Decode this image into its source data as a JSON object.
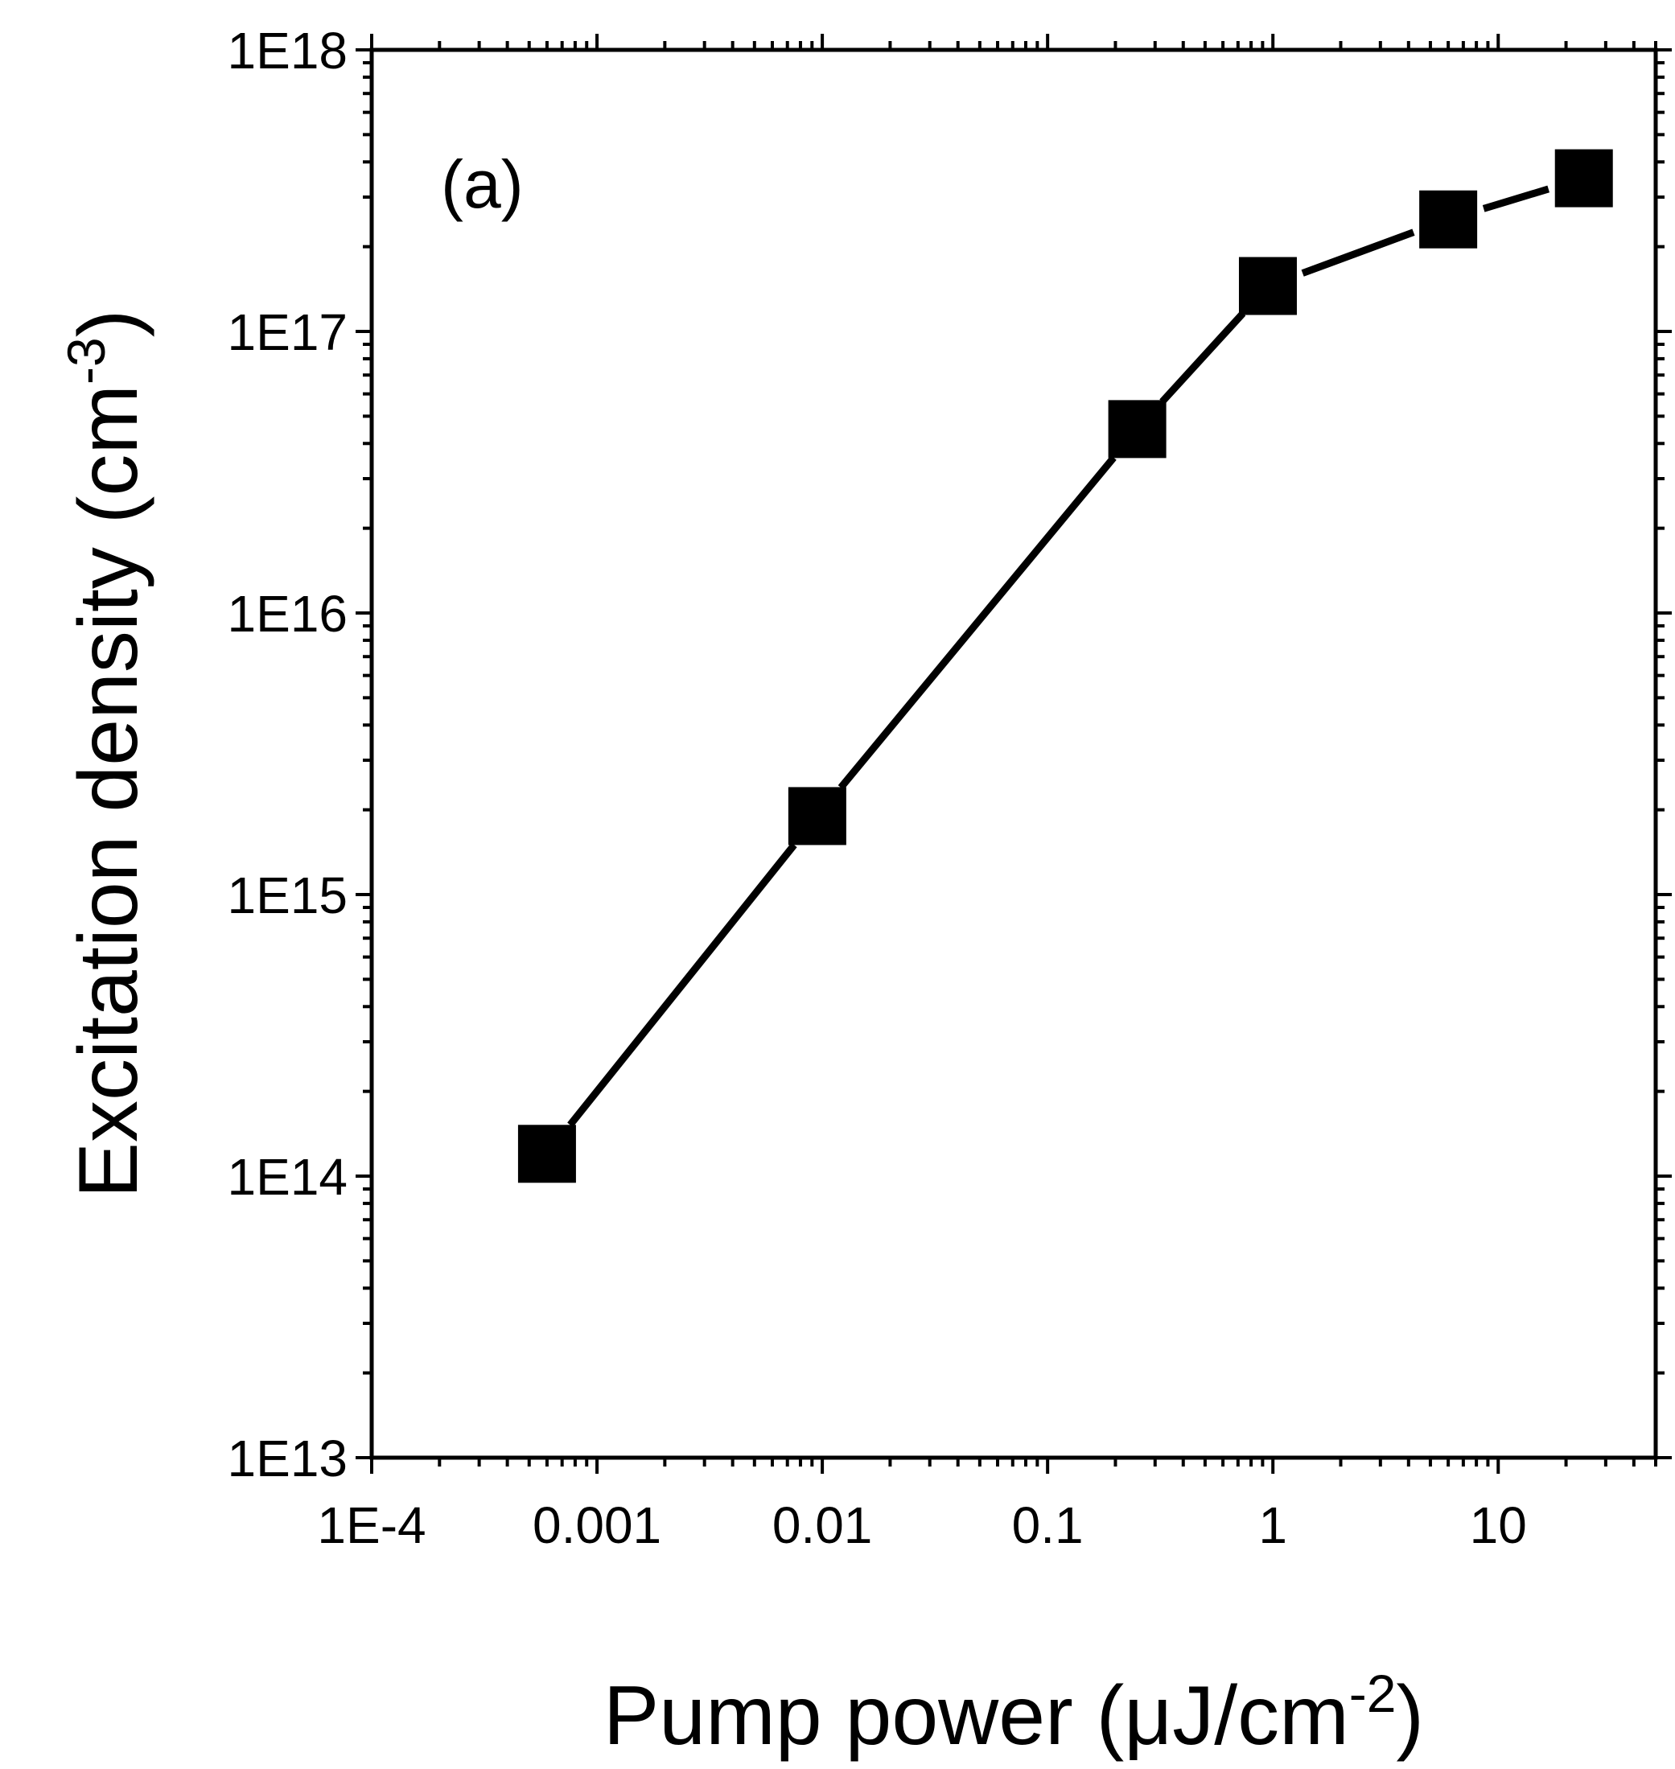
{
  "chart_data": {
    "type": "line",
    "panel_label": "(a)",
    "xlabel": "Pump power (μJ/cm",
    "xlabel_sup": "-2",
    "xlabel_end": ")",
    "ylabel": "Excitation density (cm",
    "ylabel_sup": "-3",
    "ylabel_end": ")",
    "xscale": "log",
    "yscale": "log",
    "xlim": [
      0.0001,
      50
    ],
    "ylim": [
      10000000000000.0,
      1e+18
    ],
    "x_ticks": [
      {
        "value": 0.0001,
        "label": "1E-4"
      },
      {
        "value": 0.001,
        "label": "0.001"
      },
      {
        "value": 0.01,
        "label": "0.01"
      },
      {
        "value": 0.1,
        "label": "0.1"
      },
      {
        "value": 1,
        "label": "1"
      },
      {
        "value": 10,
        "label": "10"
      }
    ],
    "y_ticks": [
      {
        "value": 10000000000000.0,
        "label": "1E13"
      },
      {
        "value": 100000000000000.0,
        "label": "1E14"
      },
      {
        "value": 1000000000000000.0,
        "label": "1E15"
      },
      {
        "value": 1e+16,
        "label": "1E16"
      },
      {
        "value": 1e+17,
        "label": "1E17"
      },
      {
        "value": 1e+18,
        "label": "1E18"
      }
    ],
    "series": [
      {
        "name": "Excitation density",
        "marker": "square",
        "color": "#000000",
        "x": [
          0.0006,
          0.0095,
          0.25,
          0.95,
          6.0,
          24.0
        ],
        "y": [
          120000000000000.0,
          1900000000000000.0,
          4.5e+16,
          1.45e+17,
          2.5e+17,
          3.5e+17
        ]
      }
    ],
    "grid": false,
    "legend": "none"
  }
}
